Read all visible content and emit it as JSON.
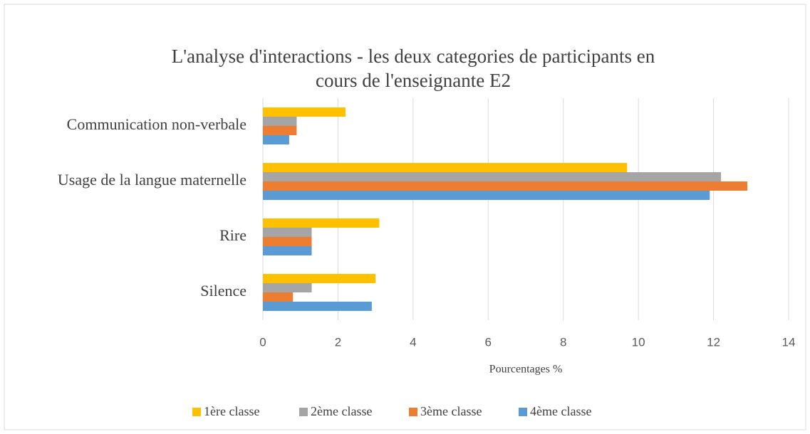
{
  "chart_data": {
    "type": "bar",
    "orientation": "horizontal",
    "title": "L'analyse d'interactions - les deux categories de participants en cours de l'enseignante E2",
    "categories": [
      "Communication non-verbale",
      "Usage de la langue maternelle",
      "Rire",
      "Silence"
    ],
    "series": [
      {
        "name": "1ère classe",
        "color": "#ffc000",
        "values": [
          2.2,
          9.7,
          3.1,
          3.0
        ]
      },
      {
        "name": "2ème classe",
        "color": "#a5a5a5",
        "values": [
          0.9,
          12.2,
          1.3,
          1.3
        ]
      },
      {
        "name": "3ème classe",
        "color": "#ed7d31",
        "values": [
          0.9,
          12.9,
          1.3,
          0.8
        ]
      },
      {
        "name": "4ème classe",
        "color": "#5b9bd5",
        "values": [
          0.7,
          11.9,
          1.3,
          2.9
        ]
      }
    ],
    "xlabel": "Pourcentages %",
    "xlim": [
      0,
      14
    ],
    "xticks": [
      0,
      2,
      4,
      6,
      8,
      10,
      12,
      14
    ],
    "grid": true,
    "legend": "bottom"
  }
}
